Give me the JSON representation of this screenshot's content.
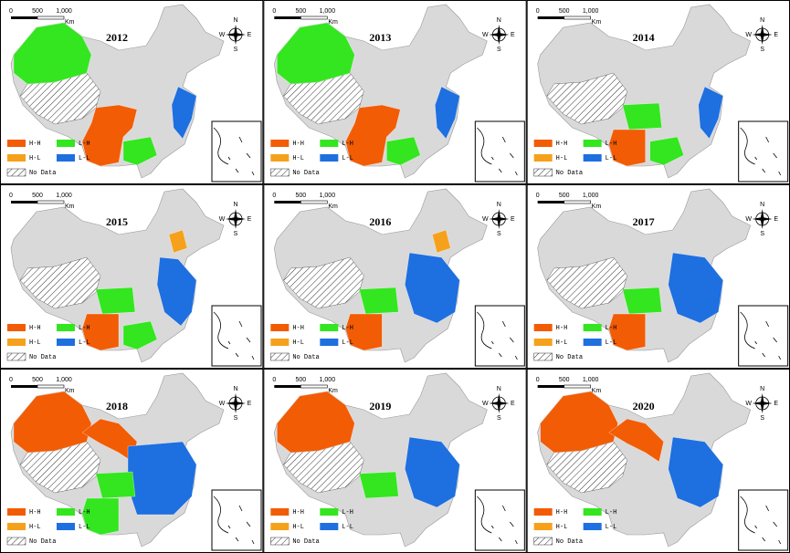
{
  "panels": [
    {
      "year": "2012",
      "scale": {
        "labels": [
          "0",
          "500",
          "1,000"
        ],
        "unit": "Km"
      },
      "compass": [
        "N",
        "S",
        "W",
        "E"
      ],
      "legend": [
        {
          "label": "H-H",
          "color": "#f25c05"
        },
        {
          "label": "L-H",
          "color": "#33e61f"
        },
        {
          "label": "H-L",
          "color": "#f5a11c"
        },
        {
          "label": "L-L",
          "color": "#1e6fe0"
        },
        {
          "label": "No Data"
        }
      ]
    },
    {
      "year": "2013",
      "scale": {
        "labels": [
          "0",
          "500",
          "1,000"
        ],
        "unit": "Km"
      },
      "compass": [
        "N",
        "S",
        "W",
        "E"
      ],
      "legend": [
        {
          "label": "H-H",
          "color": "#f25c05"
        },
        {
          "label": "L-H",
          "color": "#33e61f"
        },
        {
          "label": "H-L",
          "color": "#f5a11c"
        },
        {
          "label": "L-L",
          "color": "#1e6fe0"
        },
        {
          "label": "No Data"
        }
      ]
    },
    {
      "year": "2014",
      "scale": {
        "labels": [
          "0",
          "500",
          "1,000"
        ],
        "unit": "Km"
      },
      "compass": [
        "N",
        "S",
        "W",
        "E"
      ],
      "legend": [
        {
          "label": "H-H",
          "color": "#f25c05"
        },
        {
          "label": "L-H",
          "color": "#33e61f"
        },
        {
          "label": "H-L",
          "color": "#f5a11c"
        },
        {
          "label": "L-L",
          "color": "#1e6fe0"
        },
        {
          "label": "No Data"
        }
      ]
    },
    {
      "year": "2015",
      "scale": {
        "labels": [
          "0",
          "500",
          "1,000"
        ],
        "unit": "Km"
      },
      "compass": [
        "N",
        "S",
        "W",
        "E"
      ],
      "legend": [
        {
          "label": "H-H",
          "color": "#f25c05"
        },
        {
          "label": "L-H",
          "color": "#33e61f"
        },
        {
          "label": "H-L",
          "color": "#f5a11c"
        },
        {
          "label": "L-L",
          "color": "#1e6fe0"
        },
        {
          "label": "No Data"
        }
      ]
    },
    {
      "year": "2016",
      "scale": {
        "labels": [
          "0",
          "500",
          "1,000"
        ],
        "unit": "Km"
      },
      "compass": [
        "N",
        "S",
        "W",
        "E"
      ],
      "legend": [
        {
          "label": "H-H",
          "color": "#f25c05"
        },
        {
          "label": "L-H",
          "color": "#33e61f"
        },
        {
          "label": "H-L",
          "color": "#f5a11c"
        },
        {
          "label": "L-L",
          "color": "#1e6fe0"
        },
        {
          "label": "No Data"
        }
      ]
    },
    {
      "year": "2017",
      "scale": {
        "labels": [
          "0",
          "500",
          "1,000"
        ],
        "unit": "Km"
      },
      "compass": [
        "N",
        "S",
        "W",
        "E"
      ],
      "legend": [
        {
          "label": "H-H",
          "color": "#f25c05"
        },
        {
          "label": "L-H",
          "color": "#33e61f"
        },
        {
          "label": "H-L",
          "color": "#f5a11c"
        },
        {
          "label": "L-L",
          "color": "#1e6fe0"
        },
        {
          "label": "No Data"
        }
      ]
    },
    {
      "year": "2018",
      "scale": {
        "labels": [
          "0",
          "500",
          "1,000"
        ],
        "unit": "Km"
      },
      "compass": [
        "N",
        "S",
        "W",
        "E"
      ],
      "legend": [
        {
          "label": "H-H",
          "color": "#f25c05"
        },
        {
          "label": "L-H",
          "color": "#33e61f"
        },
        {
          "label": "H-L",
          "color": "#f5a11c"
        },
        {
          "label": "L-L",
          "color": "#1e6fe0"
        },
        {
          "label": "No Data"
        }
      ]
    },
    {
      "year": "2019",
      "scale": {
        "labels": [
          "0",
          "500",
          "1,000"
        ],
        "unit": "Km"
      },
      "compass": [
        "N",
        "S",
        "W",
        "E"
      ],
      "legend": [
        {
          "label": "H-H",
          "color": "#f25c05"
        },
        {
          "label": "L-H",
          "color": "#33e61f"
        },
        {
          "label": "H-L",
          "color": "#f5a11c"
        },
        {
          "label": "L-L",
          "color": "#1e6fe0"
        },
        {
          "label": "No Data"
        }
      ]
    },
    {
      "year": "2020",
      "scale": {
        "labels": [
          "0",
          "500",
          "1,000"
        ],
        "unit": "Km"
      },
      "compass": [
        "N",
        "S",
        "W",
        "E"
      ],
      "legend": [
        {
          "label": "H-H",
          "color": "#f25c05"
        },
        {
          "label": "L-H",
          "color": "#33e61f"
        },
        {
          "label": "H-L",
          "color": "#f5a11c"
        },
        {
          "label": "L-L",
          "color": "#1e6fe0"
        },
        {
          "label": "No Data"
        }
      ]
    }
  ]
}
